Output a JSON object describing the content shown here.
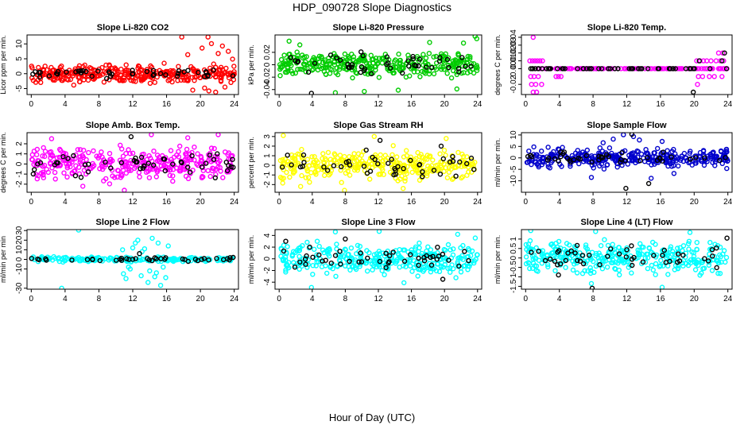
{
  "page": {
    "title": "HDP_090728  Slope Diagnostics",
    "x_caption": "Hour of Day (UTC)"
  },
  "colors": {
    "highlight_points": "#000000"
  },
  "chart_data": [
    {
      "type": "scatter",
      "title": "Slope Li-820 CO2",
      "ylabel": "Licor ppm per min.",
      "xlabel": "",
      "xlim": [
        -0.5,
        24.5
      ],
      "ylim": [
        -7,
        13
      ],
      "x_ticks": [
        0,
        4,
        8,
        12,
        16,
        20,
        24
      ],
      "y_ticks": [
        -5,
        0,
        5,
        10
      ],
      "grid": false,
      "legend": "none",
      "series": [
        {
          "color": "#ff0000",
          "n": 330,
          "spread": 1.8,
          "x": [
            17.8,
            20.9,
            21.3,
            22.6,
            23.3,
            20.2,
            19.1,
            21.8,
            22.1,
            18.5,
            20.5,
            21.0,
            23.8,
            22.9
          ],
          "y": [
            12.3,
            12.3,
            10.1,
            9.3,
            7.5,
            8.6,
            -5.5,
            -6.2,
            6.8,
            6.4,
            -4.8,
            -5.8,
            4.9,
            -4.5
          ]
        },
        {
          "color": "#000000",
          "n": 45,
          "spread": 1.0,
          "x": [],
          "y": []
        }
      ]
    },
    {
      "type": "scatter",
      "title": "Slope Li-820 Pressure",
      "ylabel": "kPa per min.",
      "xlabel": "",
      "xlim": [
        -0.5,
        24.5
      ],
      "ylim": [
        -0.048,
        0.048
      ],
      "x_ticks": [
        0,
        4,
        8,
        12,
        16,
        20,
        24
      ],
      "y_ticks": [
        -0.04,
        -0.02,
        0.0,
        0.02
      ],
      "grid": false,
      "legend": "none",
      "series": [
        {
          "color": "#00cc00",
          "n": 330,
          "spread": 0.012,
          "x": [
            23.7,
            23.9,
            1.2,
            2.5,
            6.8,
            10.3,
            14.4,
            18.2,
            21.5,
            22.3
          ],
          "y": [
            0.046,
            0.042,
            0.038,
            0.032,
            -0.045,
            -0.043,
            -0.041,
            0.036,
            -0.039,
            0.035
          ]
        },
        {
          "color": "#000000",
          "n": 45,
          "spread": 0.01,
          "x": [
            3.9
          ],
          "y": [
            -0.046
          ]
        }
      ]
    },
    {
      "type": "scatter",
      "title": "Slope Li-820 Temp.",
      "ylabel": "degrees C per min.",
      "xlabel": "",
      "xlim": [
        -0.5,
        24.5
      ],
      "ylim": [
        -0.033,
        0.043
      ],
      "x_ticks": [
        0,
        4,
        8,
        12,
        16,
        20,
        24
      ],
      "y_ticks": [
        -0.02,
        0.0,
        0.01,
        0.02,
        0.03,
        0.04
      ],
      "y_tick_labels": [
        "-0.02",
        "0.00",
        "0.01",
        "0.02",
        "0.03",
        "0.04"
      ],
      "grid": false,
      "legend": "none",
      "levels": [
        0.0,
        0.01,
        -0.01,
        -0.02,
        -0.03
      ],
      "series": [
        {
          "color": "#ff00ff",
          "x": [
            0.5,
            0.8,
            1.1,
            1.4,
            1.7,
            2.0,
            0.6,
            1.0,
            1.5,
            0.7,
            1.2,
            1.9,
            0.9,
            1.3,
            3.6,
            3.9,
            4.2,
            3.7,
            4.1,
            0.9,
            20.3,
            20.7,
            21.1,
            21.5,
            22.0,
            22.6,
            23.1,
            23.5,
            20.5,
            21.0,
            21.8,
            22.4,
            23.3,
            20.9,
            21.6,
            22.2,
            23.0,
            20.4,
            22.9,
            23.4
          ],
          "y": [
            0.01,
            0.01,
            0.01,
            0.01,
            0.01,
            0.01,
            -0.01,
            -0.01,
            -0.01,
            -0.02,
            -0.02,
            -0.02,
            -0.03,
            -0.03,
            -0.01,
            -0.01,
            -0.01,
            0.0,
            0.0,
            0.04,
            0.01,
            0.01,
            0.01,
            0.01,
            0.01,
            0.01,
            0.01,
            0.01,
            -0.01,
            -0.01,
            -0.01,
            -0.01,
            -0.01,
            0.0,
            0.0,
            0.0,
            0.0,
            -0.02,
            0.02,
            0.02
          ]
        },
        {
          "color": "#ff00ff",
          "baseline_value": 0.0,
          "n": 115
        },
        {
          "color": "#000000",
          "baseline_value": 0.0,
          "n": 55,
          "x": [
            19.9,
            20.6,
            23.3,
            23.6
          ],
          "y": [
            -0.03,
            0.01,
            0.01,
            0.02
          ]
        }
      ]
    },
    {
      "type": "scatter",
      "title": "Slope Amb. Box Temp.",
      "ylabel": "degrees C per min.",
      "xlabel": "",
      "xlim": [
        -0.5,
        24.5
      ],
      "ylim": [
        -2.8,
        3.1
      ],
      "x_ticks": [
        0,
        4,
        8,
        12,
        16,
        20,
        24
      ],
      "y_ticks": [
        -2,
        -1,
        0,
        1,
        2
      ],
      "grid": false,
      "legend": "none",
      "series": [
        {
          "color": "#ff00ff",
          "n": 330,
          "spread": 0.9,
          "x": [
            11.0,
            14.2,
            22.1,
            18.5,
            6.1,
            2.4
          ],
          "y": [
            -2.6,
            2.9,
            2.9,
            2.6,
            -2.2,
            2.5
          ]
        },
        {
          "color": "#000000",
          "n": 50,
          "spread": 0.7,
          "x": [
            11.8
          ],
          "y": [
            2.7
          ]
        }
      ]
    },
    {
      "type": "scatter",
      "title": "Slope Gas Stream RH",
      "ylabel": "percent per min.",
      "xlabel": "",
      "xlim": [
        -0.5,
        24.5
      ],
      "ylim": [
        -2.8,
        3.4
      ],
      "x_ticks": [
        0,
        4,
        8,
        12,
        16,
        20,
        24
      ],
      "y_ticks": [
        -2,
        -1,
        0,
        1,
        2,
        3
      ],
      "grid": false,
      "legend": "none",
      "series": [
        {
          "color": "#ffff00",
          "n": 330,
          "spread": 0.9,
          "x": [
            0.5,
            7.9,
            11.5,
            2.6,
            20.2,
            15.0
          ],
          "y": [
            3.1,
            -2.6,
            3.0,
            -2.2,
            2.8,
            -2.4
          ]
        },
        {
          "color": "#000000",
          "n": 45,
          "spread": 0.8,
          "x": [
            12.2,
            19.6
          ],
          "y": [
            2.6,
            2.0
          ]
        }
      ]
    },
    {
      "type": "scatter",
      "title": "Slope Sample Flow",
      "ylabel": "ml/min per min.",
      "xlabel": "",
      "xlim": [
        -0.5,
        24.5
      ],
      "ylim": [
        -15,
        11
      ],
      "x_ticks": [
        0,
        4,
        8,
        12,
        16,
        20,
        24
      ],
      "y_ticks": [
        -10,
        -5,
        0,
        5,
        10
      ],
      "grid": false,
      "legend": "none",
      "series": [
        {
          "color": "#0000cc",
          "n": 330,
          "spread": 2.4,
          "x": [
            11.6,
            10.4,
            12.8,
            14.9,
            7.8,
            16.2,
            17.6,
            9.2,
            13.5
          ],
          "y": [
            10.1,
            8.2,
            9.3,
            -8.9,
            -8.5,
            7.2,
            -6.8,
            6.6,
            7.8
          ]
        },
        {
          "color": "#000000",
          "n": 45,
          "spread": 1.5,
          "x": [
            11.9,
            14.6,
            12.6
          ],
          "y": [
            -13.3,
            -11.2,
            10.3
          ]
        }
      ]
    },
    {
      "type": "scatter",
      "title": "Slope Line 2 Flow",
      "ylabel": "ml/min per min",
      "xlabel": "",
      "xlim": [
        -0.5,
        24.5
      ],
      "ylim": [
        -31,
        31
      ],
      "x_ticks": [
        0,
        4,
        8,
        12,
        16,
        20,
        24
      ],
      "y_ticks": [
        -30,
        -10,
        0,
        10,
        20,
        30
      ],
      "grid": false,
      "legend": "none",
      "series": [
        {
          "color": "#00ffff",
          "n": 200,
          "spread": 1.6,
          "x": [
            5.6,
            3.6,
            10.9,
            11.2,
            11.7,
            12.3,
            13.0,
            13.4,
            13.8,
            14.3,
            14.8,
            15.3,
            15.9,
            16.2,
            12.6,
            13.1,
            14.0,
            14.6,
            15.0,
            15.6,
            10.8,
            11.5,
            12.0
          ],
          "y": [
            30.5,
            -30.0,
            -15.0,
            -20.0,
            -10.0,
            17.0,
            -17.0,
            11.0,
            -24.0,
            22.0,
            -14.0,
            -27.0,
            -19.0,
            14.0,
            20.0,
            8.0,
            -12.0,
            -18.0,
            17.0,
            -8.0,
            10.0,
            -8.0,
            12.0
          ]
        },
        {
          "color": "#000000",
          "n": 40,
          "spread": 1.0,
          "x": [
            12.8
          ],
          "y": [
            6.0
          ]
        }
      ]
    },
    {
      "type": "scatter",
      "title": "Slope Line 3 Flow",
      "ylabel": "ml/min per min.",
      "xlabel": "",
      "xlim": [
        -0.5,
        24.5
      ],
      "ylim": [
        -5.2,
        5.0
      ],
      "x_ticks": [
        0,
        4,
        8,
        12,
        16,
        20,
        24
      ],
      "y_ticks": [
        -4,
        -2,
        0,
        2,
        4
      ],
      "grid": false,
      "legend": "none",
      "series": [
        {
          "color": "#00ffff",
          "n": 330,
          "spread": 1.5,
          "x": [
            3.9,
            6.8,
            12.1,
            15.1,
            21.6
          ],
          "y": [
            -4.9,
            4.6,
            4.7,
            -4.1,
            4.2
          ]
        },
        {
          "color": "#000000",
          "n": 45,
          "spread": 1.1,
          "x": [
            0.8,
            8.0,
            19.8
          ],
          "y": [
            3.0,
            3.4,
            -3.5
          ]
        }
      ]
    },
    {
      "type": "scatter",
      "title": "Slope Line 4 (LT) Flow",
      "ylabel": "ml/min per min.",
      "xlabel": "",
      "xlim": [
        -0.5,
        24.5
      ],
      "ylim": [
        -1.65,
        1.5
      ],
      "x_ticks": [
        0,
        4,
        8,
        12,
        16,
        20,
        24
      ],
      "y_ticks": [
        -1.5,
        -1.0,
        -0.5,
        0.0,
        0.5,
        1.0
      ],
      "grid": false,
      "legend": "none",
      "series": [
        {
          "color": "#00ffff",
          "n": 330,
          "spread": 0.5,
          "x": [
            0.6,
            8.3,
            16.2,
            19.5,
            7.8
          ],
          "y": [
            1.45,
            1.4,
            -1.55,
            1.35,
            -1.35
          ]
        },
        {
          "color": "#000000",
          "n": 45,
          "spread": 0.35,
          "x": [
            7.9,
            23.9,
            3.9
          ],
          "y": [
            -1.6,
            1.05,
            -0.9
          ]
        }
      ]
    }
  ]
}
